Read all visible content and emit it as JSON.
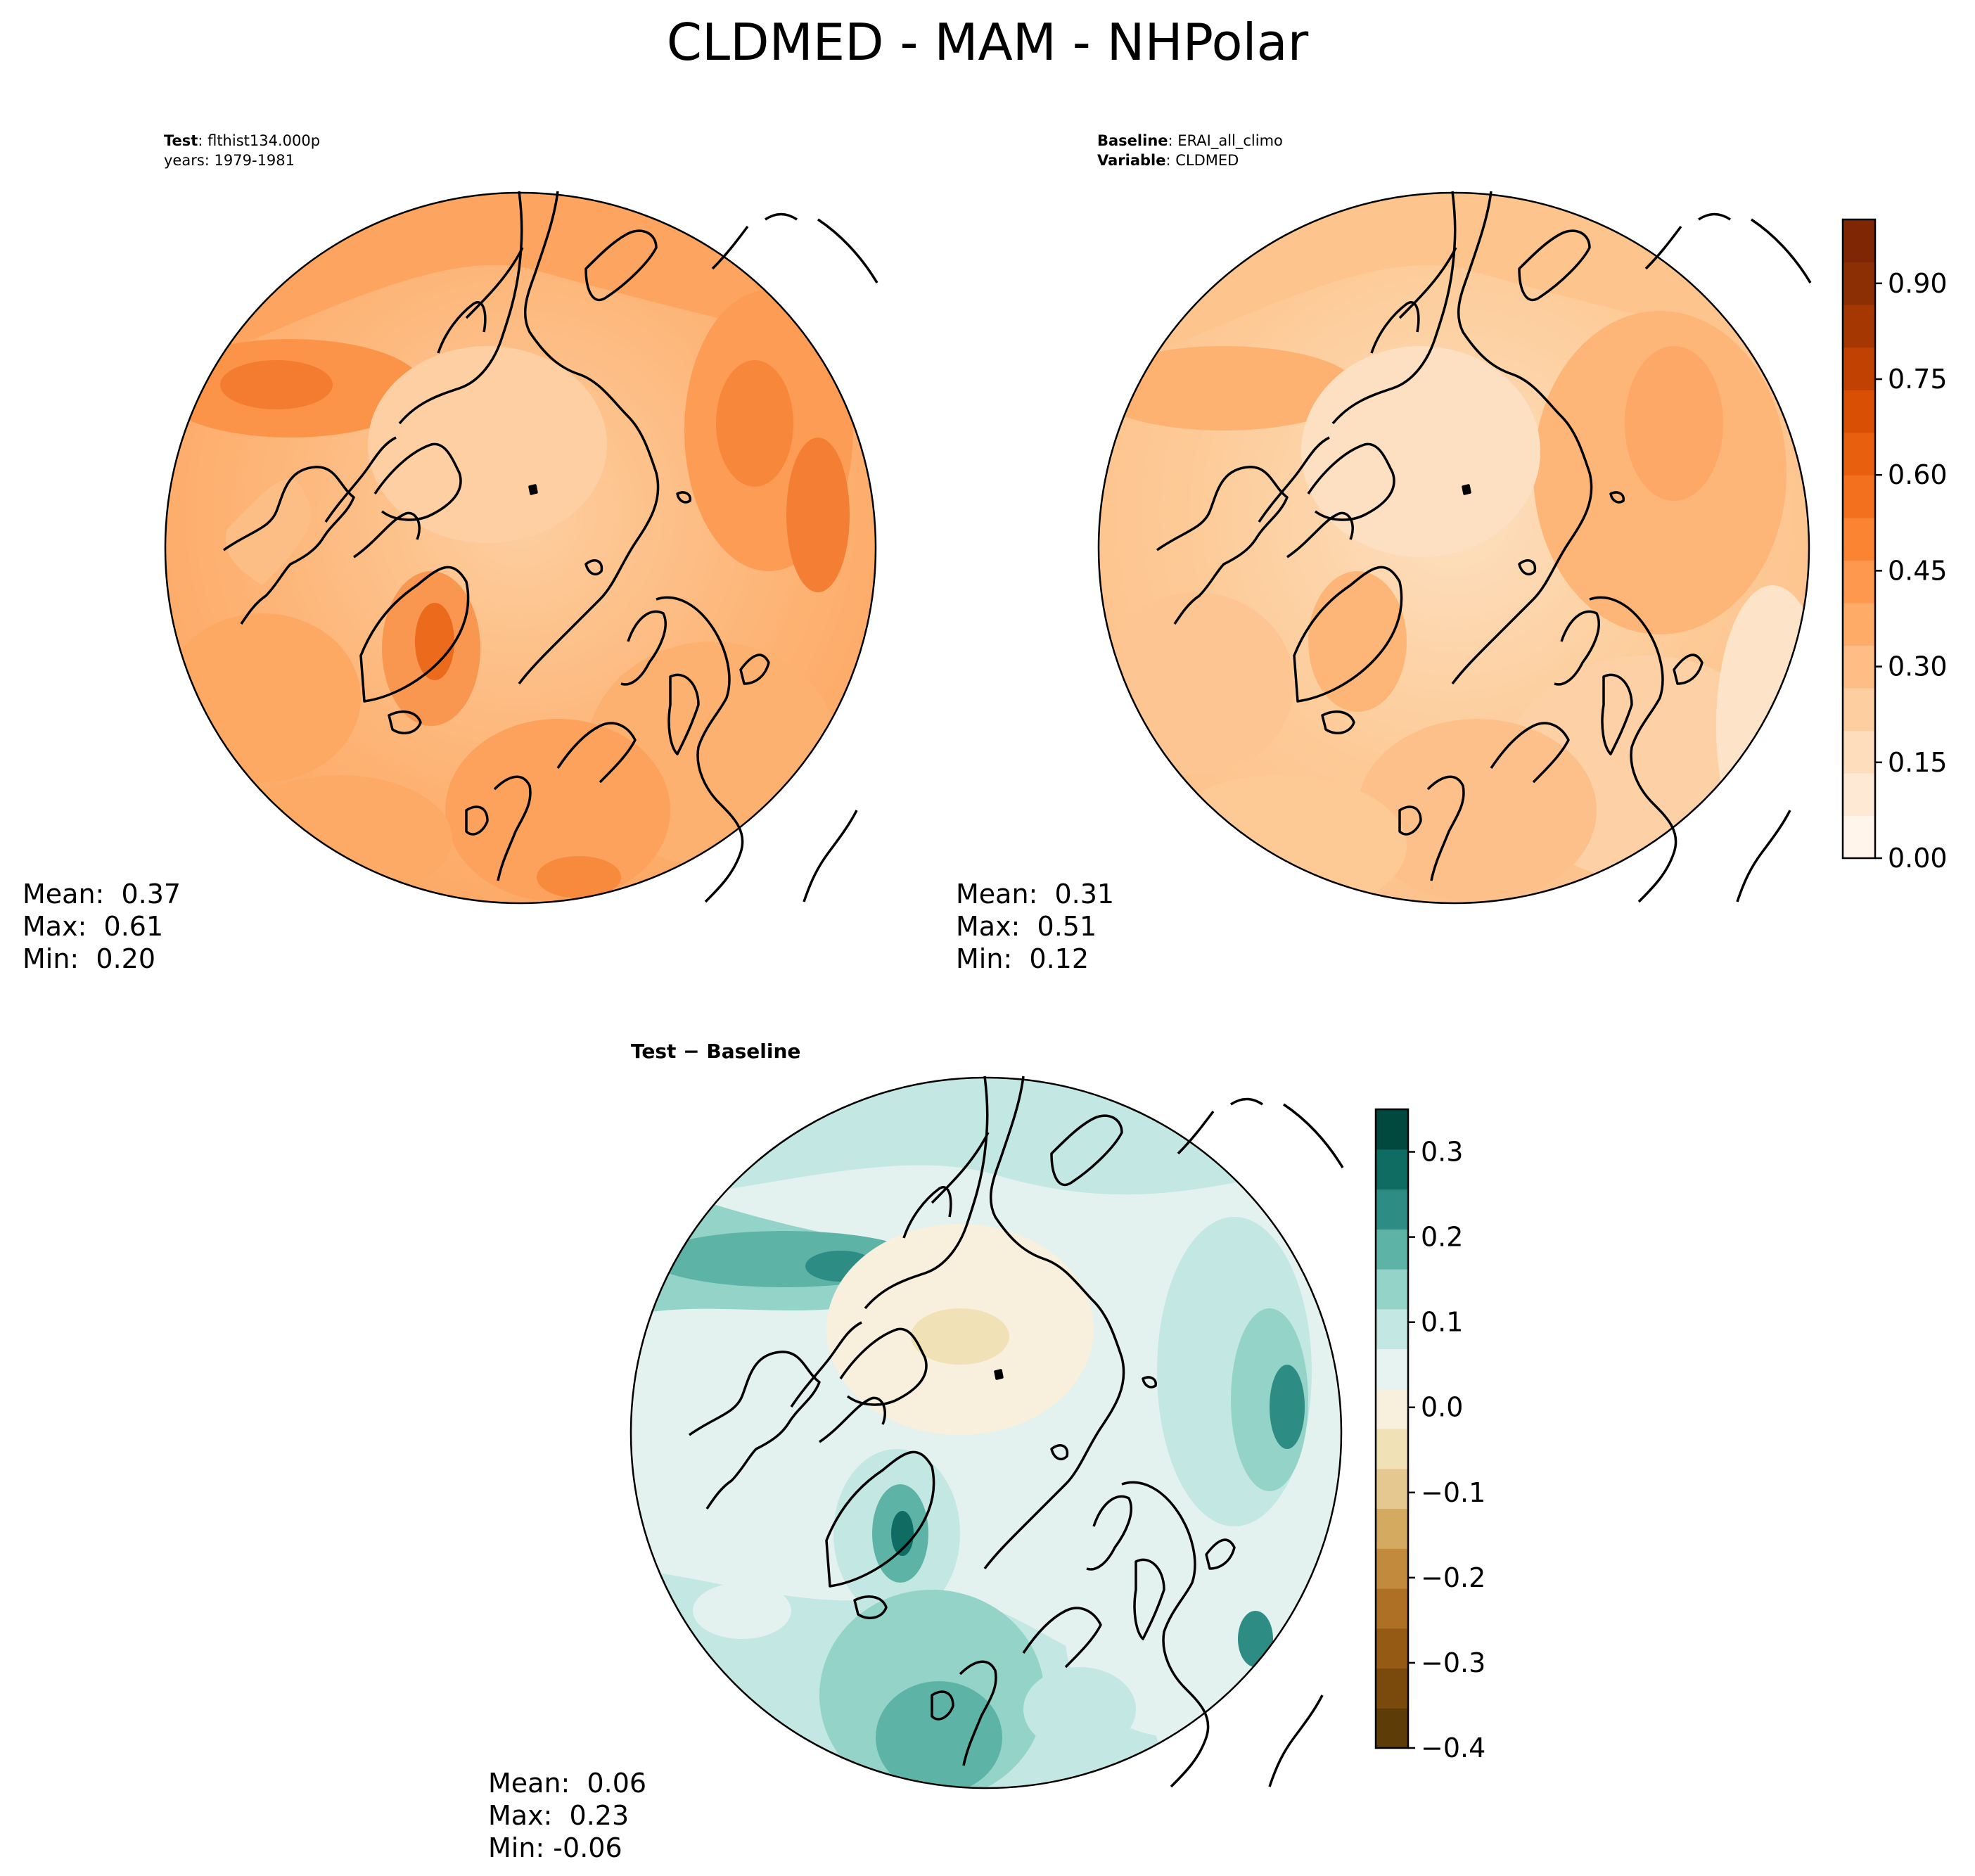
{
  "figure": {
    "title": "CLDMED - MAM - NHPolar"
  },
  "panels": {
    "test": {
      "label_key": "Test",
      "label_value": "flthist134.000p",
      "line2": "years: 1979-1981",
      "stats": {
        "mean": "Mean:  0.37",
        "max": "Max:  0.61",
        "min": "Min:  0.20"
      }
    },
    "baseline": {
      "label_key": "Baseline",
      "label_value": "ERAI_all_climo",
      "line2_key": "Variable",
      "line2_value": "CLDMED",
      "stats": {
        "mean": "Mean:  0.31",
        "max": "Max:  0.51",
        "min": "Min:  0.12"
      }
    },
    "diff": {
      "title": "Test − Baseline",
      "stats": {
        "mean": "Mean:  0.06",
        "max": "Max:  0.23",
        "min": "Min: -0.06"
      }
    }
  },
  "colorbars": {
    "main": {
      "colormap": "Oranges",
      "range": [
        0.0,
        1.0
      ],
      "ticks": [
        "0.00",
        "0.15",
        "0.30",
        "0.45",
        "0.60",
        "0.75",
        "0.90"
      ],
      "colors": [
        "#fff5eb",
        "#fee9d4",
        "#fdddbb",
        "#fdcfa0",
        "#fdbd84",
        "#fdab67",
        "#fd984e",
        "#fa8432",
        "#f3711e",
        "#e8600d",
        "#d94f04",
        "#c04102",
        "#a53703",
        "#8d2f04",
        "#7f2704"
      ]
    },
    "diff": {
      "colormap": "BrBG",
      "range": [
        -0.4,
        0.35
      ],
      "ticks": [
        "−0.4",
        "−0.3",
        "−0.2",
        "−0.1",
        "0.0",
        "0.1",
        "0.2",
        "0.3"
      ],
      "colors": [
        "#5e3c08",
        "#7a4a0d",
        "#955b15",
        "#ad7024",
        "#c18a3d",
        "#d4a960",
        "#e4c88f",
        "#f1e1b7",
        "#f8f0dc",
        "#e6f3f0",
        "#c3e7e2",
        "#94d4c8",
        "#5eb3a7",
        "#2d8d84",
        "#0f6c63",
        "#01493f"
      ]
    }
  }
}
